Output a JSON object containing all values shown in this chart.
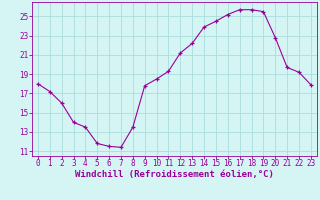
{
  "x": [
    0,
    1,
    2,
    3,
    4,
    5,
    6,
    7,
    8,
    9,
    10,
    11,
    12,
    13,
    14,
    15,
    16,
    17,
    18,
    19,
    20,
    21,
    22,
    23
  ],
  "y": [
    18.0,
    17.2,
    16.0,
    14.0,
    13.5,
    11.8,
    11.5,
    11.4,
    13.5,
    17.8,
    18.5,
    19.3,
    21.2,
    22.2,
    23.9,
    24.5,
    25.2,
    25.7,
    25.7,
    25.5,
    22.8,
    19.7,
    19.2,
    17.9
  ],
  "line_color": "#990099",
  "marker": "+",
  "bg_color": "#d5f5f5",
  "grid_color": "#aadddd",
  "xlabel": "Windchill (Refroidissement éolien,°C)",
  "xlabel_color": "#990099",
  "tick_color": "#990099",
  "ylim": [
    10.5,
    26.5
  ],
  "yticks": [
    11,
    13,
    15,
    17,
    19,
    21,
    23,
    25
  ],
  "xticks": [
    0,
    1,
    2,
    3,
    4,
    5,
    6,
    7,
    8,
    9,
    10,
    11,
    12,
    13,
    14,
    15,
    16,
    17,
    18,
    19,
    20,
    21,
    22,
    23
  ],
  "fontsize_ticks": 5.5,
  "fontsize_xlabel": 6.5
}
